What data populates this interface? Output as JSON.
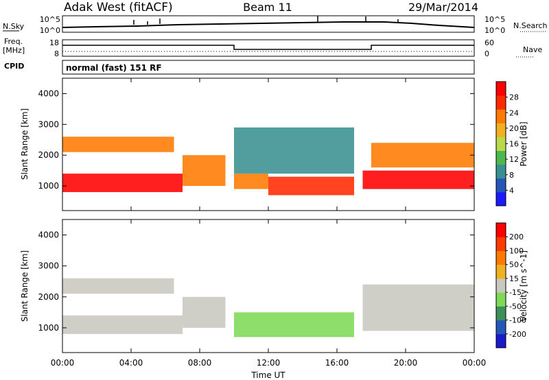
{
  "header": {
    "radar": "Adak West (fitACF)",
    "beam": "Beam 11",
    "date": "29/Mar/2014"
  },
  "noise_panel": {
    "left_label": "N.Sky",
    "right_label": "N.Search",
    "left_ticks": [
      "10^5",
      "10^0"
    ],
    "right_ticks": [
      "10^5",
      "10^0"
    ]
  },
  "freq_panel": {
    "left_label_1": "Freq.",
    "left_label_2": "[MHz]",
    "right_label": "Nave",
    "left_ticks": [
      "18",
      "8"
    ],
    "right_ticks": [
      "60",
      "0"
    ]
  },
  "cpid_panel": {
    "label": "CPID",
    "text": "normal (fast) 151 RF"
  },
  "x_axis": {
    "title": "Time UT",
    "ticks": [
      "00:00",
      "04:00",
      "08:00",
      "12:00",
      "16:00",
      "20:00",
      "00:00"
    ]
  },
  "chart_data": [
    {
      "type": "heatmap",
      "name": "Power",
      "ylabel": "Slant Range [km]",
      "xlabel": "Time UT",
      "y_ticks": [
        "1000",
        "2000",
        "3000",
        "4000"
      ],
      "ylim": [
        200,
        4500
      ],
      "xlim": [
        0,
        24
      ],
      "colorbar": {
        "title": "Power [dB]",
        "range": [
          0,
          32
        ],
        "tick_labels": [
          "4",
          "8",
          "12",
          "16",
          "20",
          "24",
          "28"
        ],
        "colors": [
          "#1a1aff",
          "#2457b8",
          "#3a8f8f",
          "#4db84d",
          "#b9d94a",
          "#f0b020",
          "#ff7a00",
          "#ff2a00",
          "#ff0000"
        ]
      },
      "echo_regions": [
        {
          "t_start": 0,
          "t_end": 7,
          "range_min": 800,
          "range_max": 1400,
          "value": 30
        },
        {
          "t_start": 7,
          "t_end": 9.5,
          "range_min": 1000,
          "range_max": 2000,
          "value": 22
        },
        {
          "t_start": 0,
          "t_end": 6.5,
          "range_min": 2100,
          "range_max": 2600,
          "value": 24
        },
        {
          "t_start": 10,
          "t_end": 12,
          "range_min": 900,
          "range_max": 1400,
          "value": 22
        },
        {
          "t_start": 12,
          "t_end": 17,
          "range_min": 700,
          "range_max": 1300,
          "value": 28
        },
        {
          "t_start": 10,
          "t_end": 17,
          "range_min": 1400,
          "range_max": 2900,
          "value": 10
        },
        {
          "t_start": 17.5,
          "t_end": 24,
          "range_min": 900,
          "range_max": 1500,
          "value": 30
        },
        {
          "t_start": 18,
          "t_end": 24,
          "range_min": 1600,
          "range_max": 2400,
          "value": 24
        }
      ]
    },
    {
      "type": "heatmap",
      "name": "Velocity",
      "ylabel": "Slant Range [km]",
      "xlabel": "Time UT",
      "y_ticks": [
        "1000",
        "2000",
        "3000",
        "4000"
      ],
      "ylim": [
        200,
        4500
      ],
      "xlim": [
        0,
        24
      ],
      "colorbar": {
        "title": "Velocity [m s^-1]",
        "range": [
          -250,
          250
        ],
        "tick_labels": [
          "200",
          "100",
          "50",
          "15",
          "-15",
          "-50",
          "-100",
          "-200"
        ],
        "colors": [
          "#1a1acc",
          "#2457b8",
          "#3a8f5a",
          "#7ed957",
          "#c8c8c0",
          "#f0b020",
          "#ff7a00",
          "#ff3a00",
          "#ff0000"
        ]
      },
      "echo_regions": [
        {
          "t_start": 0,
          "t_end": 7,
          "range_min": 800,
          "range_max": 1400,
          "value": 0
        },
        {
          "t_start": 7,
          "t_end": 9.5,
          "range_min": 1000,
          "range_max": 2000,
          "value": 0
        },
        {
          "t_start": 0,
          "t_end": 6.5,
          "range_min": 2100,
          "range_max": 2600,
          "value": 0
        },
        {
          "t_start": 10,
          "t_end": 17,
          "range_min": 700,
          "range_max": 1500,
          "value": -30
        },
        {
          "t_start": 17.5,
          "t_end": 24,
          "range_min": 900,
          "range_max": 2400,
          "value": 0
        }
      ]
    }
  ]
}
